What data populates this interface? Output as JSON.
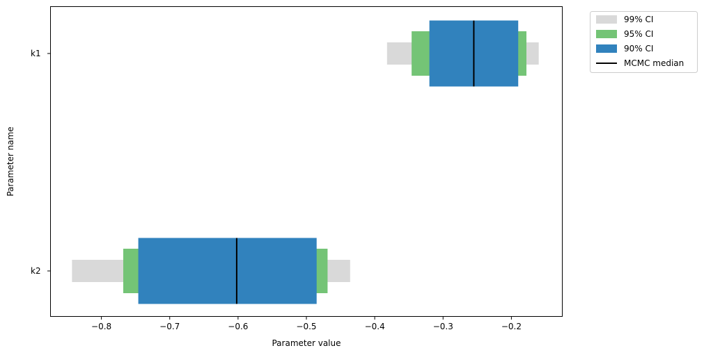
{
  "chart_data": {
    "type": "bar",
    "orientation": "horizontal",
    "title": "",
    "xlabel": "Parameter value",
    "ylabel": "Parameter name",
    "xlim": [
      -0.875,
      -0.125
    ],
    "x_ticks": [
      -0.8,
      -0.7,
      -0.6,
      -0.5,
      -0.4,
      -0.3,
      -0.2
    ],
    "x_tick_labels": [
      "−0.8",
      "−0.7",
      "−0.6",
      "−0.5",
      "−0.4",
      "−0.3",
      "−0.2"
    ],
    "categories": [
      "k1",
      "k2"
    ],
    "grid": false,
    "legend_position": "outside top-right",
    "series": [
      {
        "name": "99% CI",
        "color": "#d9d9d9",
        "intervals": [
          [
            -0.382,
            -0.16
          ],
          [
            -0.843,
            -0.436
          ]
        ]
      },
      {
        "name": "95% CI",
        "color": "#74c476",
        "intervals": [
          [
            -0.346,
            -0.178
          ],
          [
            -0.768,
            -0.469
          ]
        ]
      },
      {
        "name": "90% CI",
        "color": "#3182bd",
        "intervals": [
          [
            -0.32,
            -0.19
          ],
          [
            -0.746,
            -0.485
          ]
        ]
      }
    ],
    "median": {
      "name": "MCMC median",
      "color": "#000000",
      "values": [
        -0.255,
        -0.602
      ]
    }
  }
}
